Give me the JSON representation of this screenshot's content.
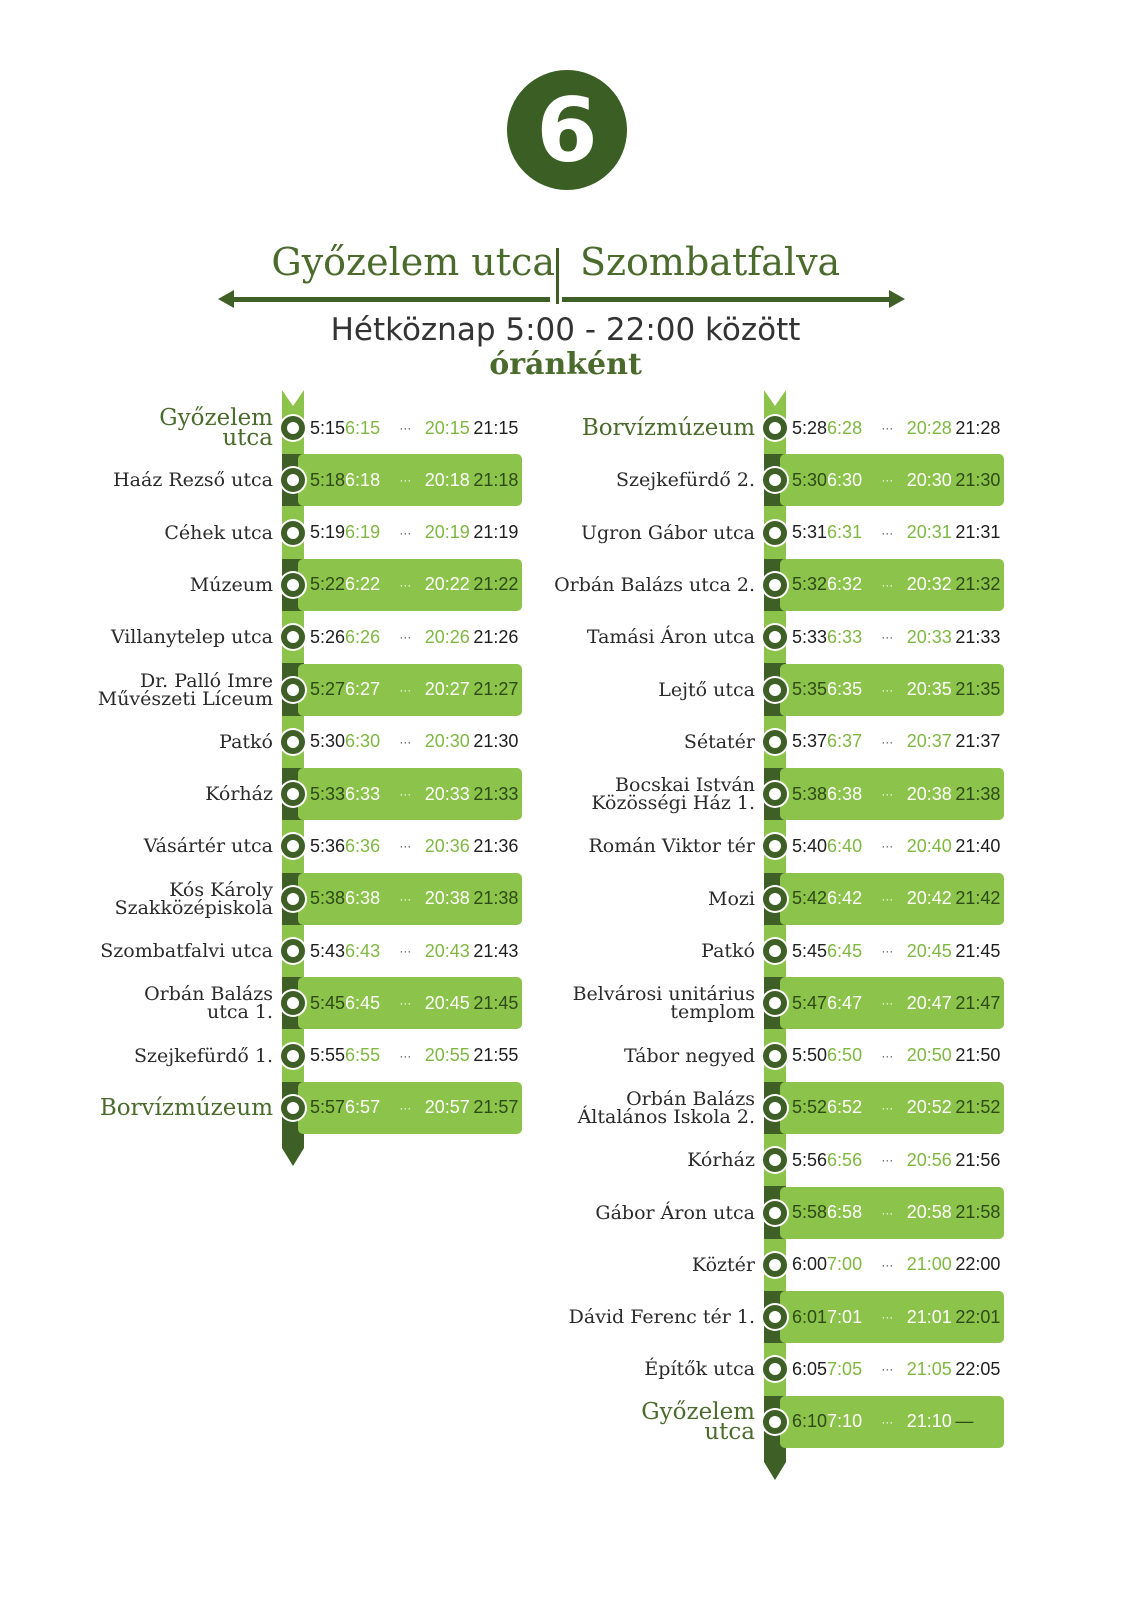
{
  "route": {
    "number": "6"
  },
  "header": {
    "terminus_left": "Győzelem utca",
    "terminus_right": "Szombatfalva",
    "schedule": "Hétköznap 5:00 - 22:00 között",
    "frequency": "óránként"
  },
  "directions": [
    {
      "stops": [
        {
          "name": "Győzelem utca",
          "terminal": true,
          "times": [
            "5:15",
            "6:15",
            "···",
            "20:15",
            "21:15"
          ]
        },
        {
          "name": "Haáz Rezső utca",
          "times": [
            "5:18",
            "6:18",
            "···",
            "20:18",
            "21:18"
          ]
        },
        {
          "name": "Céhek utca",
          "times": [
            "5:19",
            "6:19",
            "···",
            "20:19",
            "21:19"
          ]
        },
        {
          "name": "Múzeum",
          "times": [
            "5:22",
            "6:22",
            "···",
            "20:22",
            "21:22"
          ]
        },
        {
          "name": "Villanytelep utca",
          "times": [
            "5:26",
            "6:26",
            "···",
            "20:26",
            "21:26"
          ]
        },
        {
          "name": "Dr. Palló Imre Művészeti Líceum",
          "times": [
            "5:27",
            "6:27",
            "···",
            "20:27",
            "21:27"
          ]
        },
        {
          "name": "Patkó",
          "times": [
            "5:30",
            "6:30",
            "···",
            "20:30",
            "21:30"
          ]
        },
        {
          "name": "Kórház",
          "times": [
            "5:33",
            "6:33",
            "···",
            "20:33",
            "21:33"
          ]
        },
        {
          "name": "Vásártér utca",
          "times": [
            "5:36",
            "6:36",
            "···",
            "20:36",
            "21:36"
          ]
        },
        {
          "name": "Kós Károly Szakközépiskola",
          "times": [
            "5:38",
            "6:38",
            "···",
            "20:38",
            "21:38"
          ]
        },
        {
          "name": "Szombatfalvi utca",
          "times": [
            "5:43",
            "6:43",
            "···",
            "20:43",
            "21:43"
          ]
        },
        {
          "name": "Orbán Balázs utca 1.",
          "times": [
            "5:45",
            "6:45",
            "···",
            "20:45",
            "21:45"
          ]
        },
        {
          "name": "Szejkefürdő 1.",
          "times": [
            "5:55",
            "6:55",
            "···",
            "20:55",
            "21:55"
          ]
        },
        {
          "name": "Borvízmúzeum",
          "terminal": true,
          "times": [
            "5:57",
            "6:57",
            "···",
            "20:57",
            "21:57"
          ]
        }
      ]
    },
    {
      "stops": [
        {
          "name": "Borvízmúzeum",
          "terminal": true,
          "times": [
            "5:28",
            "6:28",
            "···",
            "20:28",
            "21:28"
          ]
        },
        {
          "name": "Szejkefürdő 2.",
          "times": [
            "5:30",
            "6:30",
            "···",
            "20:30",
            "21:30"
          ]
        },
        {
          "name": "Ugron Gábor utca",
          "times": [
            "5:31",
            "6:31",
            "···",
            "20:31",
            "21:31"
          ]
        },
        {
          "name": "Orbán Balázs utca 2.",
          "times": [
            "5:32",
            "6:32",
            "···",
            "20:32",
            "21:32"
          ]
        },
        {
          "name": "Tamási Áron utca",
          "times": [
            "5:33",
            "6:33",
            "···",
            "20:33",
            "21:33"
          ]
        },
        {
          "name": "Lejtő utca",
          "times": [
            "5:35",
            "6:35",
            "···",
            "20:35",
            "21:35"
          ]
        },
        {
          "name": "Sétatér",
          "times": [
            "5:37",
            "6:37",
            "···",
            "20:37",
            "21:37"
          ]
        },
        {
          "name": "Bocskai István Közösségi Ház 1.",
          "times": [
            "5:38",
            "6:38",
            "···",
            "20:38",
            "21:38"
          ]
        },
        {
          "name": "Román Viktor tér",
          "times": [
            "5:40",
            "6:40",
            "···",
            "20:40",
            "21:40"
          ]
        },
        {
          "name": "Mozi",
          "times": [
            "5:42",
            "6:42",
            "···",
            "20:42",
            "21:42"
          ]
        },
        {
          "name": "Patkó",
          "times": [
            "5:45",
            "6:45",
            "···",
            "20:45",
            "21:45"
          ]
        },
        {
          "name": "Belvárosi unitárius templom",
          "times": [
            "5:47",
            "6:47",
            "···",
            "20:47",
            "21:47"
          ]
        },
        {
          "name": "Tábor negyed",
          "times": [
            "5:50",
            "6:50",
            "···",
            "20:50",
            "21:50"
          ]
        },
        {
          "name": "Orbán Balázs Általános Iskola 2.",
          "times": [
            "5:52",
            "6:52",
            "···",
            "20:52",
            "21:52"
          ]
        },
        {
          "name": "Kórház",
          "times": [
            "5:56",
            "6:56",
            "···",
            "20:56",
            "21:56"
          ]
        },
        {
          "name": "Gábor Áron utca",
          "times": [
            "5:58",
            "6:58",
            "···",
            "20:58",
            "21:58"
          ]
        },
        {
          "name": "Köztér",
          "times": [
            "6:00",
            "7:00",
            "···",
            "21:00",
            "22:00"
          ]
        },
        {
          "name": "Dávid Ferenc tér 1.",
          "times": [
            "6:01",
            "7:01",
            "···",
            "21:01",
            "22:01"
          ]
        },
        {
          "name": "Építők utca",
          "times": [
            "6:05",
            "7:05",
            "···",
            "21:05",
            "22:05"
          ]
        },
        {
          "name": "Győzelem utca",
          "terminal": true,
          "times": [
            "6:10",
            "7:10",
            "···",
            "21:10",
            "—"
          ]
        }
      ]
    }
  ]
}
